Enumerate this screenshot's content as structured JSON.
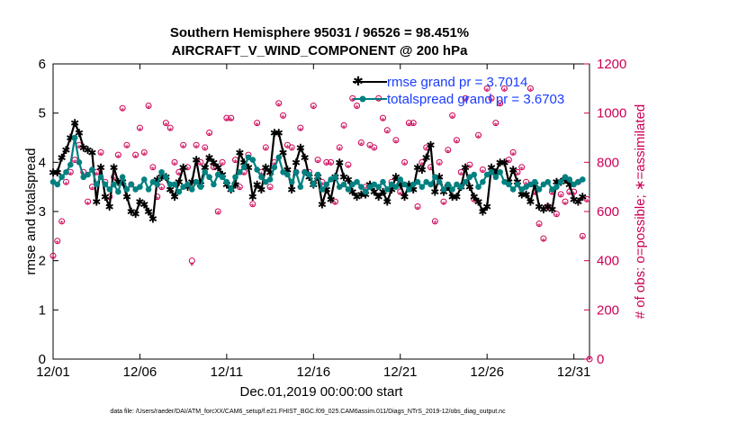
{
  "chart_data": {
    "type": "line",
    "title": "Southern Hemisphere 95031 / 96526 = 98.451%",
    "subtitle": "AIRCRAFT_V_WIND_COMPONENT @ 200 hPa",
    "xlabel": "Dec.01,2019 00:00:00 start",
    "ylabel": "rmse and totalspread",
    "ylabel_right": "# of obs: o=possible; ∗=assimilated",
    "footnote": "data file: /Users/raeder/DAI/ATM_forcXX/CAM6_setup/f.e21.FHIST_BGC.f09_025.CAM6assim.011/Diags_NTrS_2019-12/obs_diag_output.nc",
    "x_tick_labels": [
      "12/01",
      "12/06",
      "12/11",
      "12/16",
      "12/21",
      "12/26",
      "12/31"
    ],
    "x_tick_days": [
      0,
      5,
      10,
      15,
      20,
      25,
      30
    ],
    "xlim": [
      0,
      30.9
    ],
    "ylim": [
      0,
      6
    ],
    "y_ticks": [
      0,
      1,
      2,
      3,
      4,
      5,
      6
    ],
    "ylim_right": [
      0,
      1200
    ],
    "y_ticks_right": [
      0,
      200,
      400,
      600,
      800,
      1000,
      1200
    ],
    "colors": {
      "rmse": "#000000",
      "spread": "#008080",
      "obs": "#cc0055",
      "legend_text": "#1a3cff"
    },
    "series": [
      {
        "name": "rmse grand pr = 3.7014",
        "axis": "left",
        "x": [
          0.0,
          0.25,
          0.5,
          0.75,
          1.0,
          1.25,
          1.5,
          1.75,
          2.0,
          2.25,
          2.5,
          2.75,
          3.0,
          3.25,
          3.5,
          3.75,
          4.0,
          4.25,
          4.5,
          4.75,
          5.0,
          5.25,
          5.5,
          5.75,
          6.0,
          6.25,
          6.5,
          6.75,
          7.0,
          7.25,
          7.5,
          7.75,
          8.0,
          8.25,
          8.5,
          8.75,
          9.0,
          9.25,
          9.5,
          9.75,
          10.0,
          10.25,
          10.5,
          10.75,
          11.0,
          11.25,
          11.5,
          11.75,
          12.0,
          12.25,
          12.5,
          12.75,
          13.0,
          13.25,
          13.5,
          13.75,
          14.0,
          14.25,
          14.5,
          14.75,
          15.0,
          15.25,
          15.5,
          15.75,
          16.0,
          16.25,
          16.5,
          16.75,
          17.0,
          17.25,
          17.5,
          17.75,
          18.0,
          18.25,
          18.5,
          18.75,
          19.0,
          19.25,
          19.5,
          19.75,
          20.0,
          20.25,
          20.5,
          20.75,
          21.0,
          21.25,
          21.5,
          21.75,
          22.0,
          22.25,
          22.5,
          22.75,
          23.0,
          23.25,
          23.5,
          23.75,
          24.0,
          24.25,
          24.5,
          24.75,
          25.0,
          25.25,
          25.5,
          25.75,
          26.0,
          26.25,
          26.5,
          26.75,
          27.0,
          27.25,
          27.5,
          27.75,
          28.0,
          28.25,
          28.5,
          28.75,
          29.0,
          29.25,
          29.5,
          29.75,
          30.0,
          30.25,
          30.5
        ],
        "values": [
          3.8,
          3.8,
          4.1,
          4.25,
          4.5,
          4.8,
          4.6,
          4.3,
          4.25,
          4.2,
          3.2,
          3.9,
          3.3,
          3.1,
          3.9,
          3.6,
          3.6,
          3.3,
          3.0,
          2.95,
          3.2,
          3.15,
          3.0,
          2.85,
          3.65,
          3.7,
          3.7,
          3.45,
          3.3,
          3.6,
          3.9,
          3.5,
          3.6,
          4.05,
          3.55,
          3.9,
          4.1,
          4.0,
          3.9,
          3.75,
          3.55,
          3.45,
          3.55,
          4.2,
          4.0,
          3.9,
          3.3,
          3.55,
          3.45,
          3.9,
          3.8,
          4.6,
          4.6,
          4.2,
          3.85,
          3.45,
          4.0,
          4.3,
          4.1,
          3.7,
          3.55,
          3.7,
          3.15,
          3.45,
          3.25,
          3.7,
          4.0,
          3.7,
          3.65,
          3.4,
          3.3,
          3.35,
          3.35,
          3.55,
          3.4,
          3.3,
          3.4,
          3.2,
          3.45,
          3.7,
          3.55,
          3.3,
          3.55,
          3.45,
          3.9,
          3.85,
          4.1,
          4.35,
          3.4,
          3.7,
          3.4,
          3.5,
          3.3,
          3.3,
          3.5,
          3.9,
          3.5,
          3.3,
          3.2,
          3.0,
          3.1,
          3.9,
          3.8,
          4.0,
          4.0,
          3.6,
          3.85,
          3.6,
          3.35,
          3.35,
          3.2,
          3.55,
          3.1,
          3.05,
          3.1,
          3.05,
          3.6,
          3.6,
          3.65,
          3.55,
          3.25,
          3.2,
          3.3
        ],
        "grand_mean": 3.7014
      },
      {
        "name": "totalspread grand pr = 3.6703",
        "axis": "left",
        "x": [
          0.0,
          0.25,
          0.5,
          0.75,
          1.0,
          1.25,
          1.5,
          1.75,
          2.0,
          2.25,
          2.5,
          2.75,
          3.0,
          3.25,
          3.5,
          3.75,
          4.0,
          4.25,
          4.5,
          4.75,
          5.0,
          5.25,
          5.5,
          5.75,
          6.0,
          6.25,
          6.5,
          6.75,
          7.0,
          7.25,
          7.5,
          7.75,
          8.0,
          8.25,
          8.5,
          8.75,
          9.0,
          9.25,
          9.5,
          9.75,
          10.0,
          10.25,
          10.5,
          10.75,
          11.0,
          11.25,
          11.5,
          11.75,
          12.0,
          12.25,
          12.5,
          12.75,
          13.0,
          13.25,
          13.5,
          13.75,
          14.0,
          14.25,
          14.5,
          14.75,
          15.0,
          15.25,
          15.5,
          15.75,
          16.0,
          16.25,
          16.5,
          16.75,
          17.0,
          17.25,
          17.5,
          17.75,
          18.0,
          18.25,
          18.5,
          18.75,
          19.0,
          19.25,
          19.5,
          19.75,
          20.0,
          20.25,
          20.5,
          20.75,
          21.0,
          21.25,
          21.5,
          21.75,
          22.0,
          22.25,
          22.5,
          22.75,
          23.0,
          23.25,
          23.5,
          23.75,
          24.0,
          24.25,
          24.5,
          24.75,
          25.0,
          25.25,
          25.5,
          25.75,
          26.0,
          26.25,
          26.5,
          26.75,
          27.0,
          27.25,
          27.5,
          27.75,
          28.0,
          28.25,
          28.5,
          28.75,
          29.0,
          29.25,
          29.5,
          29.75,
          30.0,
          30.25,
          30.5
        ],
        "values": [
          3.6,
          3.55,
          3.7,
          3.8,
          3.95,
          4.5,
          4.0,
          3.7,
          3.75,
          3.85,
          3.55,
          3.7,
          3.55,
          3.45,
          3.55,
          3.4,
          3.7,
          3.45,
          3.55,
          3.45,
          3.5,
          3.65,
          3.45,
          3.6,
          3.55,
          3.8,
          3.7,
          3.55,
          3.55,
          3.4,
          3.5,
          3.55,
          3.45,
          3.6,
          3.5,
          3.8,
          3.7,
          3.55,
          3.75,
          3.7,
          3.6,
          3.45,
          3.7,
          3.8,
          3.9,
          4.1,
          4.05,
          3.85,
          3.7,
          3.6,
          3.65,
          3.9,
          4.1,
          3.8,
          3.75,
          3.6,
          3.8,
          3.5,
          3.8,
          3.75,
          3.55,
          3.75,
          3.45,
          3.55,
          3.65,
          3.7,
          3.5,
          3.55,
          3.45,
          3.55,
          3.6,
          3.5,
          3.4,
          3.5,
          3.55,
          3.5,
          3.6,
          3.45,
          3.55,
          3.5,
          3.65,
          3.55,
          3.45,
          3.55,
          3.6,
          3.5,
          3.6,
          3.55,
          3.7,
          3.6,
          3.45,
          3.55,
          3.45,
          3.55,
          3.5,
          3.6,
          3.7,
          3.75,
          3.5,
          3.6,
          3.75,
          3.8,
          3.7,
          3.8,
          3.6,
          3.55,
          3.45,
          3.55,
          3.45,
          3.5,
          3.55,
          3.6,
          3.45,
          3.55,
          3.6,
          3.45,
          3.5,
          3.6,
          3.7,
          3.65,
          3.55,
          3.6,
          3.65
        ],
        "grand_mean": 3.6703
      }
    ],
    "obs_counts": {
      "axis": "right",
      "x": [
        0.0,
        0.25,
        0.5,
        0.75,
        1.0,
        1.25,
        1.5,
        1.75,
        2.0,
        2.25,
        2.5,
        2.75,
        3.0,
        3.25,
        3.5,
        3.75,
        4.0,
        4.25,
        4.5,
        4.75,
        5.0,
        5.25,
        5.5,
        5.75,
        6.0,
        6.25,
        6.5,
        6.75,
        7.0,
        7.25,
        7.5,
        7.75,
        8.0,
        8.25,
        8.5,
        8.75,
        9.0,
        9.25,
        9.5,
        9.75,
        10.0,
        10.25,
        10.5,
        10.75,
        11.0,
        11.25,
        11.5,
        11.75,
        12.0,
        12.25,
        12.5,
        12.75,
        13.0,
        13.25,
        13.5,
        13.75,
        14.0,
        14.25,
        14.5,
        14.75,
        15.0,
        15.25,
        15.5,
        15.75,
        16.0,
        16.25,
        16.5,
        16.75,
        17.0,
        17.25,
        17.5,
        17.75,
        18.0,
        18.25,
        18.5,
        18.75,
        19.0,
        19.25,
        19.5,
        19.75,
        20.0,
        20.25,
        20.5,
        20.75,
        21.0,
        21.25,
        21.5,
        21.75,
        22.0,
        22.25,
        22.5,
        22.75,
        23.0,
        23.25,
        23.5,
        23.75,
        24.0,
        24.25,
        24.5,
        24.75,
        25.0,
        25.25,
        25.5,
        25.75,
        26.0,
        26.25,
        26.5,
        26.75,
        27.0,
        27.25,
        27.5,
        27.75,
        28.0,
        28.25,
        28.5,
        28.75,
        29.0,
        29.25,
        29.5,
        29.75,
        30.0,
        30.25,
        30.5,
        30.75
      ],
      "possible": [
        420,
        480,
        560,
        720,
        760,
        810,
        870,
        760,
        640,
        700,
        760,
        840,
        720,
        660,
        740,
        830,
        1020,
        870,
        710,
        830,
        940,
        840,
        1030,
        780,
        660,
        700,
        960,
        940,
        800,
        760,
        870,
        780,
        400,
        870,
        800,
        860,
        920,
        780,
        600,
        800,
        980,
        980,
        810,
        700,
        760,
        830,
        630,
        960,
        760,
        860,
        700,
        800,
        1040,
        990,
        870,
        860,
        760,
        940,
        760,
        760,
        1030,
        810,
        720,
        800,
        800,
        640,
        860,
        950,
        790,
        1060,
        1030,
        880,
        700,
        870,
        860,
        1060,
        980,
        930,
        720,
        890,
        680,
        800,
        960,
        960,
        620,
        800,
        860,
        780,
        560,
        800,
        640,
        850,
        990,
        890,
        760,
        1060,
        790,
        650,
        910,
        770,
        1100,
        1060,
        960,
        1040,
        1100,
        810,
        840,
        760,
        780,
        720,
        1100,
        680,
        550,
        490,
        620,
        680,
        590,
        670,
        640,
        680,
        680,
        720,
        500,
        650
      ],
      "assimilated": [
        410,
        470,
        550,
        710,
        750,
        800,
        860,
        750,
        630,
        690,
        750,
        830,
        710,
        650,
        730,
        820,
        1010,
        860,
        700,
        820,
        930,
        830,
        1020,
        770,
        650,
        690,
        950,
        930,
        790,
        750,
        860,
        770,
        380,
        860,
        790,
        850,
        910,
        770,
        590,
        790,
        970,
        970,
        800,
        690,
        750,
        820,
        620,
        950,
        750,
        850,
        690,
        790,
        1030,
        980,
        860,
        850,
        750,
        930,
        750,
        750,
        1020,
        800,
        710,
        790,
        790,
        630,
        850,
        940,
        780,
        1050,
        1020,
        870,
        690,
        860,
        850,
        1050,
        970,
        920,
        710,
        880,
        670,
        790,
        950,
        950,
        610,
        790,
        850,
        770,
        550,
        790,
        630,
        840,
        980,
        880,
        750,
        1050,
        780,
        640,
        900,
        760,
        1090,
        1050,
        950,
        1030,
        1090,
        800,
        830,
        750,
        770,
        710,
        1090,
        670,
        540,
        480,
        610,
        670,
        580,
        660,
        630,
        670,
        670,
        710,
        490,
        640
      ],
      "last_point": {
        "x": 30.9,
        "possible": 0,
        "assimilated": 0
      }
    }
  }
}
